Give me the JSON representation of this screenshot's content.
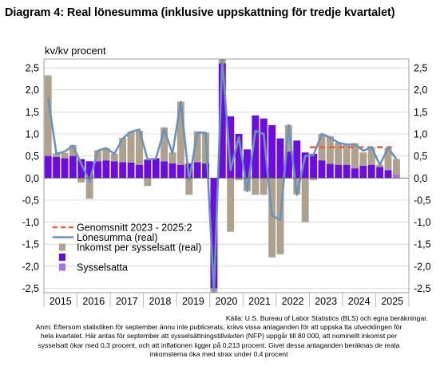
{
  "title": "Diagram 4: Real lönesumma (inklusive uppskattning för tredje kvartalet)",
  "source": "Källa: U.S. Bureau of Labor Statistics (BLS) och egna beräkningar.",
  "note_lines": [
    "Anm: Eftersom statistiken för september ännu inte publicerats, krävs vissa antaganden för att uppska        tta utvecklingen för",
    "hela kvartalet. Här antas för september att sysselsättningstillväxten (NFP) uppgår till 80 000, att           nominellt inkomst per",
    "sysselsatt ökar med 0,3 procent, och att inflationen ligger på 0,213 procent. Givet dessa antaganden          beräknas de reala",
    "inkomsterna öka med strax under 0,4 procent"
  ],
  "colors": {
    "income": "#aea18e",
    "employed_dark": "#6a0de0",
    "employed_light": "#a672ee",
    "wage_line": "#6b93b8",
    "average": "#e85d3c",
    "grid": "#d0d0d0"
  },
  "chart_data": {
    "type": "bar+line",
    "ylabel": "kv/kv procent",
    "ylim": [
      -2.6,
      2.7
    ],
    "yticks": [
      "2,5",
      "2,0",
      "1,5",
      "1,0",
      "0,5",
      "0,0",
      "-0,5",
      "-1,0",
      "-1,5",
      "-2,0",
      "-2,5"
    ],
    "ytick_values": [
      2.5,
      2.0,
      1.5,
      1.0,
      0.5,
      0.0,
      -0.5,
      -1.0,
      -1.5,
      -2.0,
      -2.5
    ],
    "year_labels": [
      "2015",
      "2016",
      "2017",
      "2018",
      "2019",
      "2020",
      "2021",
      "2022",
      "2023",
      "2024",
      "2025"
    ],
    "periods_per_year": 4,
    "legend": [
      {
        "label": "Genomsnitt 2023   - 2025:2",
        "kind": "average"
      },
      {
        "label": "Lönesumma (real)",
        "kind": "line"
      },
      {
        "label": "Inkomst per sysselsatt (real)",
        "kind": "income"
      },
      {
        "label": "",
        "kind": "employed_dark"
      },
      {
        "label": "Sysselsatta",
        "kind": "employed_light"
      }
    ],
    "series": [
      {
        "name": "Inkomst per sysselsatt (real)",
        "values": [
          1.83,
          0.08,
          0.12,
          0.25,
          -0.1,
          -0.47,
          0.25,
          0.28,
          0.17,
          0.55,
          0.7,
          0.77,
          -0.18,
          0.0,
          0.77,
          0.25,
          1.43,
          -0.38,
          0.7,
          0.7,
          -2.0,
          1.75,
          -1.22,
          -0.05,
          -0.3,
          -0.38,
          -0.38,
          -1.8,
          -1.73,
          0.6,
          -0.37,
          -1.0,
          -0.05,
          0.6,
          0.63,
          0.5,
          0.48,
          0.57,
          0.3,
          0.4,
          0.05,
          0.5,
          0.35
        ]
      },
      {
        "name": "Sysselsatta",
        "values": [
          0.5,
          0.48,
          0.45,
          0.5,
          0.43,
          0.38,
          0.38,
          0.4,
          0.38,
          0.36,
          0.35,
          0.3,
          0.42,
          0.45,
          0.38,
          0.33,
          0.3,
          0.33,
          0.36,
          0.33,
          -2.5,
          2.6,
          1.4,
          1.0,
          0.65,
          1.42,
          1.35,
          1.2,
          0.9,
          0.6,
          0.85,
          0.58,
          0.55,
          0.4,
          0.32,
          0.3,
          0.3,
          0.22,
          0.28,
          0.3,
          0.25,
          0.18,
          0.08
        ]
      },
      {
        "name": "Lönesumma (real)",
        "values": [
          1.83,
          0.55,
          0.6,
          0.73,
          0.33,
          -0.08,
          0.62,
          0.68,
          0.55,
          0.9,
          1.05,
          1.1,
          0.42,
          0.44,
          1.1,
          0.56,
          1.73,
          -0.05,
          1.03,
          1.03,
          -2.6,
          2.7,
          0.18,
          0.93,
          -0.3,
          1.07,
          1.0,
          -0.85,
          -0.95,
          1.2,
          -0.38,
          0.5,
          0.52,
          1.0,
          0.92,
          0.8,
          0.76,
          0.76,
          0.62,
          0.7,
          0.3,
          0.68,
          0.43
        ]
      },
      {
        "name": "Genomsnitt 2023   - 2025:2",
        "value": 0.7,
        "start_index": 32,
        "end_index": 41
      }
    ]
  }
}
